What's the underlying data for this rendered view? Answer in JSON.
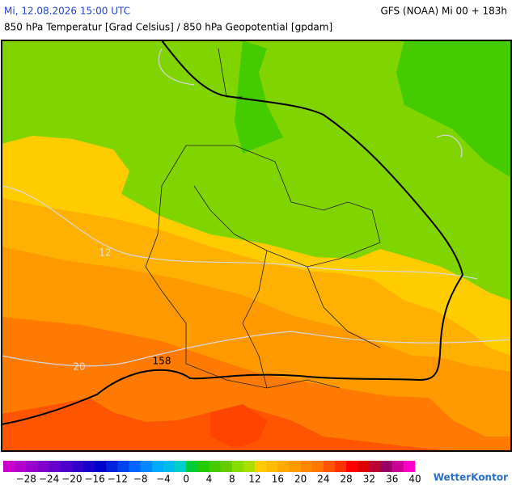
{
  "header": {
    "datetime": "Mi, 12.08.2026 15:00 UTC",
    "model": "GFS (NOAA) Mi 00 + 183h",
    "title": "850 hPa Temperatur [Grad Celsius] / 850 hPa Geopotential [gpdam]"
  },
  "map": {
    "contour_labels": [
      "12",
      "20",
      "158"
    ]
  },
  "colorbar": {
    "labels": [
      "−28",
      "−24",
      "−20",
      "−16",
      "−12",
      "−8",
      "−4",
      "0",
      "4",
      "8",
      "12",
      "16",
      "20",
      "24",
      "28",
      "32",
      "36",
      "40"
    ],
    "colors": [
      "#cc00cc",
      "#b300cc",
      "#9900cc",
      "#8000cc",
      "#6600cc",
      "#4d00cc",
      "#3300cc",
      "#1a00cc",
      "#0000cc",
      "#0022dd",
      "#0044ee",
      "#0066ff",
      "#0088ff",
      "#00aaff",
      "#00bbee",
      "#00cccc",
      "#00cc33",
      "#22cc00",
      "#44cc00",
      "#66cc00",
      "#88dd00",
      "#aadd00",
      "#ffcc00",
      "#ffbb00",
      "#ffaa00",
      "#ff9900",
      "#ff8800",
      "#ff7700",
      "#ff5500",
      "#ff3300",
      "#ff0000",
      "#dd0000",
      "#bb0033",
      "#990066",
      "#cc0099",
      "#ff00cc"
    ]
  },
  "logo": "WetterKontor"
}
